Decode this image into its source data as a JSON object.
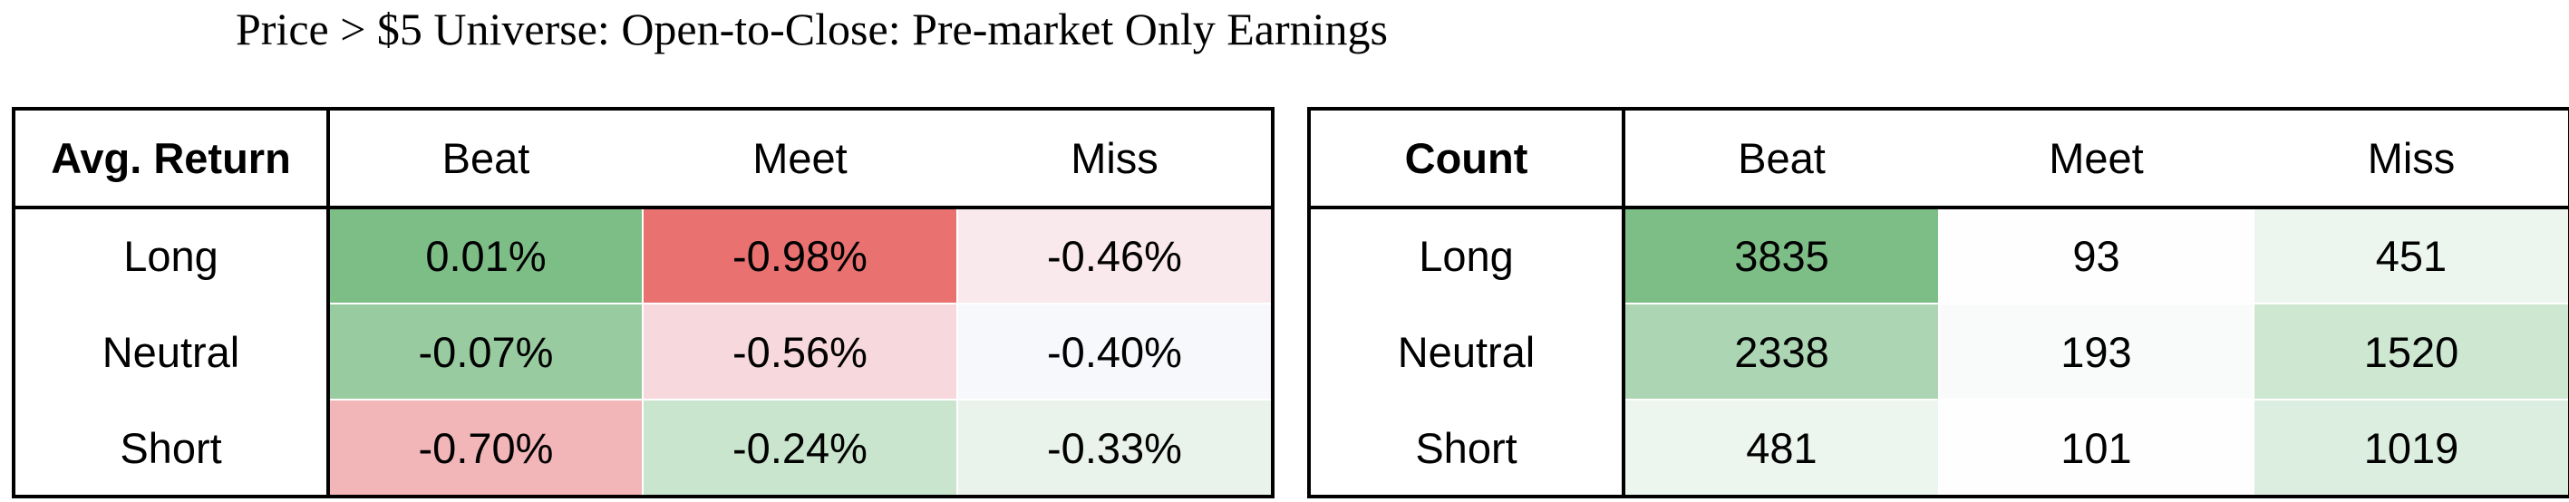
{
  "title": "Price > $5 Universe: Open-to-Close: Pre-market Only Earnings",
  "colors": {
    "dark_green": "#7dbe87",
    "mid_green": "#98cb9f",
    "light_green": "#c9e5cd",
    "pale_green": "#e9f3eb",
    "dark_red": "#e97170",
    "mid_red": "#f2b5b8",
    "light_red": "#f7d8dc",
    "pale_red": "#fae9ec",
    "near_white": "#f7f8fb",
    "white": "#fefefe"
  },
  "avg_return_table": {
    "header": "Avg. Return",
    "columns": [
      "Beat",
      "Meet",
      "Miss"
    ],
    "rows": [
      {
        "label": "Long",
        "cells": [
          {
            "value": "0.01%",
            "color": "#7dbe87"
          },
          {
            "value": "-0.98%",
            "color": "#e97170"
          },
          {
            "value": "-0.46%",
            "color": "#fae9ec"
          }
        ]
      },
      {
        "label": "Neutral",
        "cells": [
          {
            "value": "-0.07%",
            "color": "#98cb9f"
          },
          {
            "value": "-0.56%",
            "color": "#f7d8dc"
          },
          {
            "value": "-0.40%",
            "color": "#f7f8fb"
          }
        ]
      },
      {
        "label": "Short",
        "cells": [
          {
            "value": "-0.70%",
            "color": "#f2b5b8"
          },
          {
            "value": "-0.24%",
            "color": "#c9e5cd"
          },
          {
            "value": "-0.33%",
            "color": "#e9f3eb"
          }
        ]
      }
    ]
  },
  "count_table": {
    "header": "Count",
    "columns": [
      "Beat",
      "Meet",
      "Miss"
    ],
    "rows": [
      {
        "label": "Long",
        "cells": [
          {
            "value": "3835",
            "color": "#7dbe87"
          },
          {
            "value": "93",
            "color": "#fefefe"
          },
          {
            "value": "451",
            "color": "#edf5ef"
          }
        ]
      },
      {
        "label": "Neutral",
        "cells": [
          {
            "value": "2338",
            "color": "#acd6b3"
          },
          {
            "value": "193",
            "color": "#f9fbfa"
          },
          {
            "value": "1520",
            "color": "#cde7d1"
          }
        ]
      },
      {
        "label": "Short",
        "cells": [
          {
            "value": "481",
            "color": "#ecf5ee"
          },
          {
            "value": "101",
            "color": "#fdfefd"
          },
          {
            "value": "1019",
            "color": "#dbeedf"
          }
        ]
      }
    ]
  }
}
